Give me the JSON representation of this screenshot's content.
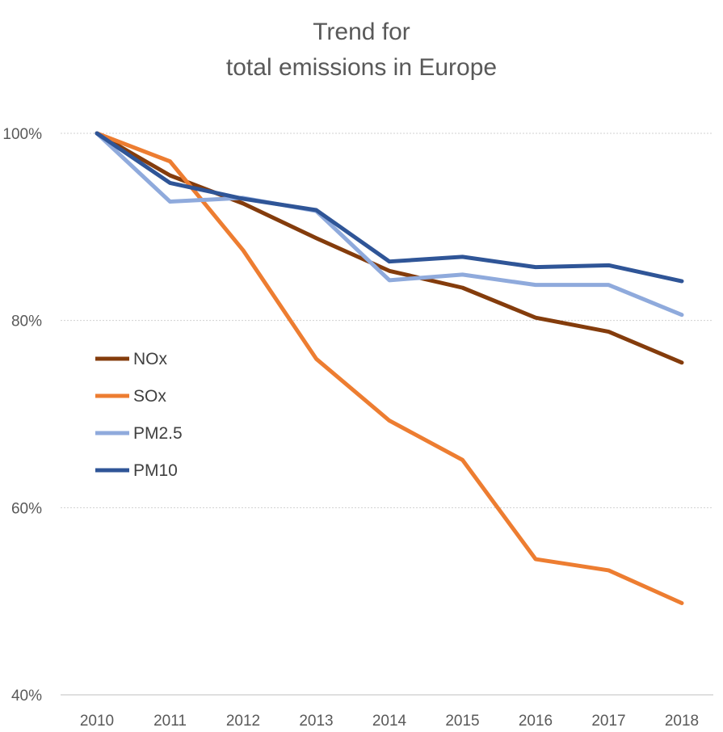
{
  "chart_data": {
    "type": "line",
    "title_line1": "Trend for",
    "title_line2": "total emissions in Europe",
    "categories": [
      "2010",
      "2011",
      "2012",
      "2013",
      "2014",
      "2015",
      "2016",
      "2017",
      "2018"
    ],
    "y_ticks": [
      "40%",
      "60%",
      "80%",
      "100%"
    ],
    "ylim": [
      40,
      100
    ],
    "grid": true,
    "legend_position": "left",
    "series": [
      {
        "name": "NOx",
        "color": "#843C0C",
        "values": [
          100,
          95.5,
          92.5,
          88.8,
          85.3,
          83.5,
          80.3,
          78.8,
          75.5
        ]
      },
      {
        "name": "SOx",
        "color": "#ED7D31",
        "values": [
          100,
          97.0,
          87.5,
          75.9,
          69.3,
          65.1,
          54.5,
          53.3,
          49.8
        ]
      },
      {
        "name": "PM2.5",
        "color": "#8FAADC",
        "values": [
          100,
          92.7,
          93.1,
          91.7,
          84.3,
          84.9,
          83.8,
          83.8,
          80.6
        ]
      },
      {
        "name": "PM10",
        "color": "#2F5597",
        "values": [
          100,
          94.7,
          93.0,
          91.8,
          86.3,
          86.8,
          85.7,
          85.9,
          84.2
        ]
      }
    ]
  }
}
